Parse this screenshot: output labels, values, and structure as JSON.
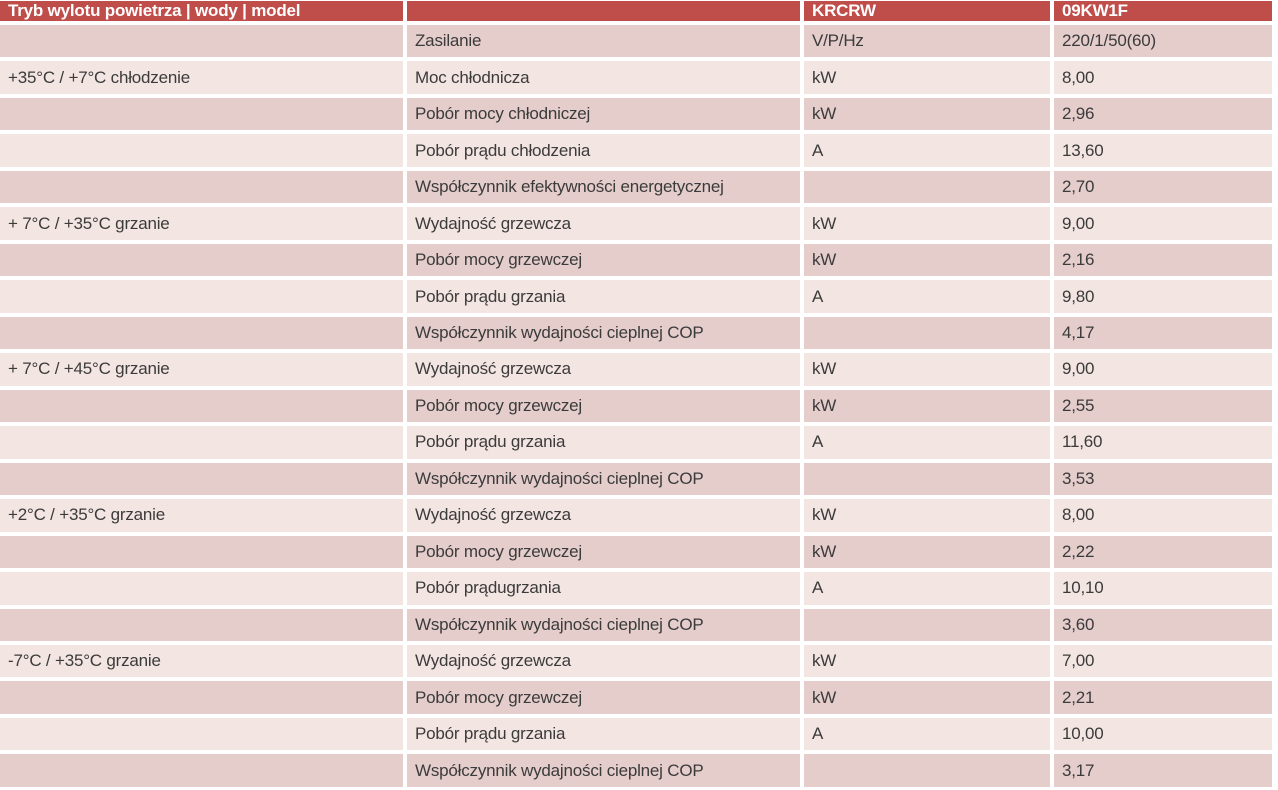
{
  "table": {
    "header": {
      "col1": "Tryb wylotu powietrza | wody | model",
      "col2": "",
      "col3": "KRCRW",
      "col4": "09KW1F"
    },
    "rows": [
      {
        "mode": "",
        "param": "Zasilanie",
        "unit": "V/P/Hz",
        "value": "220/1/50(60)"
      },
      {
        "mode": "+35°C / +7°C chłodzenie",
        "param": "Moc chłodnicza",
        "unit": "kW",
        "value": "8,00"
      },
      {
        "mode": "",
        "param": "Pobór mocy chłodniczej",
        "unit": "kW",
        "value": "2,96"
      },
      {
        "mode": "",
        "param": "Pobór prądu chłodzenia",
        "unit": "A",
        "value": "13,60"
      },
      {
        "mode": "",
        "param": "Współczynnik efektywności energetycznej",
        "unit": "",
        "value": "2,70"
      },
      {
        "mode": "+ 7°C / +35°C grzanie",
        "param": "Wydajność grzewcza",
        "unit": "kW",
        "value": "9,00"
      },
      {
        "mode": "",
        "param": "Pobór mocy grzewczej",
        "unit": "kW",
        "value": "2,16"
      },
      {
        "mode": "",
        "param": "Pobór prądu grzania",
        "unit": "A",
        "value": "9,80"
      },
      {
        "mode": "",
        "param": "Współczynnik wydajności cieplnej COP",
        "unit": "",
        "value": "4,17"
      },
      {
        "mode": "+ 7°C / +45°C grzanie",
        "param": "Wydajność grzewcza",
        "unit": "kW",
        "value": "9,00"
      },
      {
        "mode": "",
        "param": "Pobór mocy grzewczej",
        "unit": "kW",
        "value": "2,55"
      },
      {
        "mode": "",
        "param": "Pobór prądu grzania",
        "unit": "A",
        "value": "11,60"
      },
      {
        "mode": "",
        "param": "Współczynnik wydajności cieplnej COP",
        "unit": "",
        "value": "3,53"
      },
      {
        "mode": "+2°C / +35°C grzanie",
        "param": "Wydajność grzewcza",
        "unit": "kW",
        "value": "8,00"
      },
      {
        "mode": "",
        "param": "Pobór mocy grzewczej",
        "unit": "kW",
        "value": "2,22"
      },
      {
        "mode": "",
        "param": "Pobór prądugrzania",
        "unit": "A",
        "value": "10,10"
      },
      {
        "mode": "",
        "param": "Współczynnik wydajności cieplnej COP",
        "unit": "",
        "value": "3,60"
      },
      {
        "mode": "-7°C / +35°C grzanie",
        "param": "Wydajność grzewcza",
        "unit": "kW",
        "value": "7,00"
      },
      {
        "mode": "",
        "param": "Pobór mocy grzewczej",
        "unit": "kW",
        "value": "2,21"
      },
      {
        "mode": "",
        "param": "Pobór prądu grzania",
        "unit": "A",
        "value": "10,00"
      },
      {
        "mode": "",
        "param": "Współczynnik wydajności cieplnej COP",
        "unit": "",
        "value": "3,17"
      }
    ]
  },
  "colors": {
    "header_bg": "#BF4D4A",
    "header_text": "#FFFFFF",
    "row_dark": "#E4CDCB",
    "row_light": "#F3E5E2",
    "text": "#3B3B3B"
  }
}
